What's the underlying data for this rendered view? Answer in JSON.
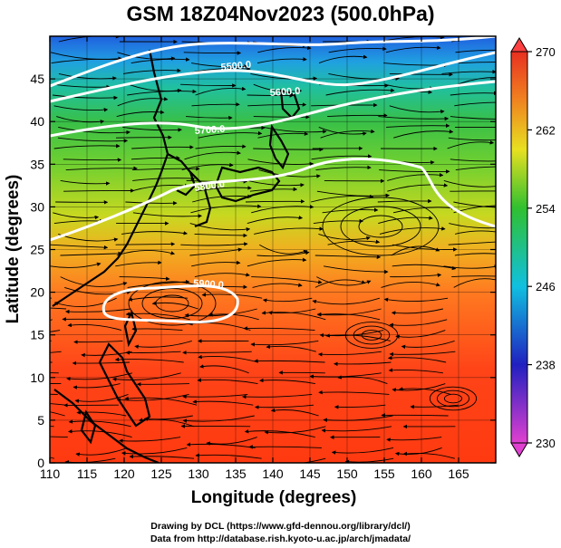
{
  "title": "GSM 18Z04Nov2023 (500.0hPa)",
  "x_axis": {
    "label": "Longitude (degrees)",
    "range": [
      110,
      170
    ],
    "ticks": [
      "110",
      "115",
      "120",
      "125",
      "130",
      "135",
      "140",
      "145",
      "150",
      "155",
      "160",
      "165"
    ]
  },
  "y_axis": {
    "label": "Latitude (degrees)",
    "range": [
      0,
      50
    ],
    "ticks": [
      "0",
      "5",
      "10",
      "15",
      "20",
      "25",
      "30",
      "35",
      "40",
      "45"
    ]
  },
  "colorbar": {
    "range": [
      230,
      270
    ],
    "tick_labels": [
      "230",
      "238",
      "246",
      "254",
      "262",
      "270"
    ],
    "colors": [
      "#e040d0",
      "#2020c0",
      "#10c0e0",
      "#30c030",
      "#e8e020",
      "#f08020",
      "#e83020"
    ]
  },
  "contours": [
    {
      "label": "5500.0"
    },
    {
      "label": "5600.0"
    },
    {
      "label": "5700.0"
    },
    {
      "label": "5800.0"
    },
    {
      "label": "5900.0"
    }
  ],
  "overlay": {
    "contour_color": "#ffffff",
    "streamline_color": "#000000",
    "coastline_color": "#000000",
    "grid": true
  },
  "credits": {
    "line1": "Drawing by DCL (https://www.gfd-dennou.org/library/dcl/)",
    "line2": "Data from http://database.rish.kyoto-u.ac.jp/arch/jmadata/"
  }
}
